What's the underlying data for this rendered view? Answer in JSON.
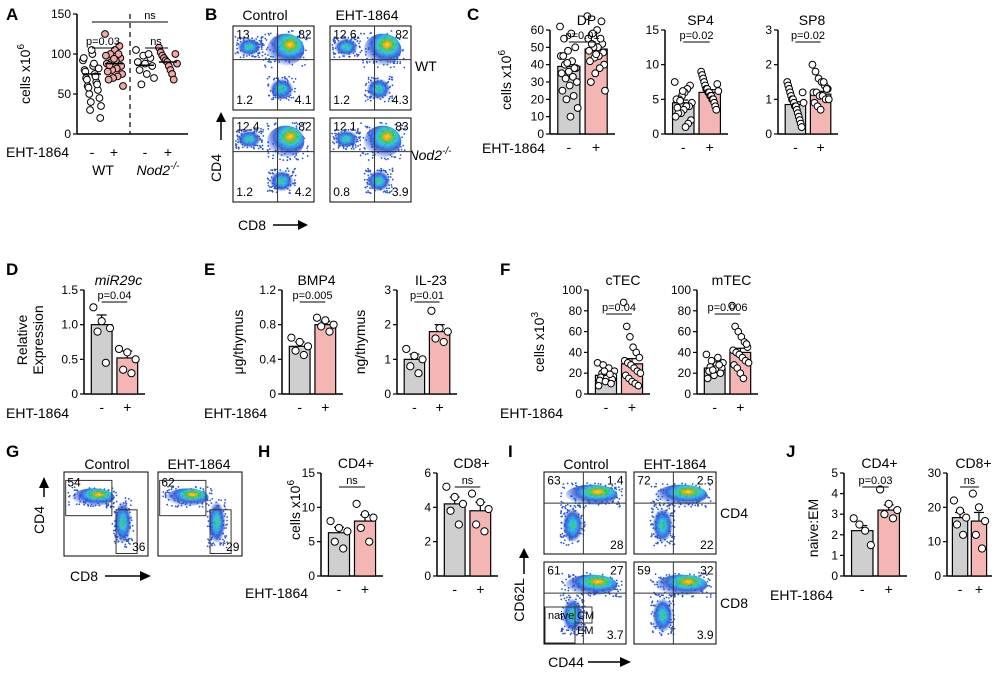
{
  "colors": {
    "control_bar": "#cfcfcf",
    "treated_bar": "#f4b6b3",
    "treated_dot": "#f1a9a5",
    "axis": "#000000"
  },
  "xtick_labels": [
    "-",
    "+"
  ],
  "group_label": "EHT-1864",
  "panels": {
    "A": {
      "letter": "A",
      "ylabel": "cells x10",
      "ylabel_sup": "6",
      "yticks": [
        0,
        50,
        100,
        150
      ],
      "ylim": [
        0,
        150
      ],
      "groups": [
        "WT",
        "Nod2"
      ],
      "group2_sup": "-/-",
      "pvals": [
        "p=0.03",
        "ns",
        "ns"
      ],
      "values": {
        "wt_ctrl": [
          92,
          85,
          80,
          75,
          70,
          65,
          60,
          55,
          50,
          45,
          40,
          35,
          100,
          95,
          88,
          78,
          72,
          68,
          62,
          58,
          82,
          30,
          20,
          105
        ],
        "wt_eht": [
          125,
          110,
          105,
          100,
          98,
          95,
          92,
          90,
          88,
          85,
          82,
          80,
          78,
          75,
          72,
          70,
          68,
          60,
          100,
          94,
          86
        ],
        "nod_ctrl": [
          105,
          98,
          95,
          90,
          88,
          85,
          80,
          75,
          70,
          62,
          100
        ],
        "nod_eht": [
          108,
          102,
          98,
          95,
          92,
          90,
          85,
          80,
          75,
          68,
          100,
          88
        ]
      },
      "means": [
        75,
        88,
        86,
        90
      ]
    },
    "B": {
      "letter": "B",
      "col_labels": [
        "Control",
        "EHT-1864"
      ],
      "row_labels": [
        "WT",
        "Nod2"
      ],
      "row2_sup": "-/-",
      "xlabel": "CD8",
      "ylabel": "CD4",
      "quads": [
        [
          "13",
          "82",
          "1.2",
          "4.1"
        ],
        [
          "12.6",
          "82",
          "1.2",
          "4.3"
        ],
        [
          "12.4",
          "82",
          "1.2",
          "4.2"
        ],
        [
          "12.1",
          "83",
          "0.8",
          "3.9"
        ]
      ]
    },
    "C": {
      "letter": "C",
      "ylabel": "cells x10",
      "ylabel_sup": "6",
      "subpanels": [
        {
          "title": "DP",
          "yticks": [
            0,
            10,
            20,
            30,
            40,
            50,
            60
          ],
          "ylim": [
            0,
            60
          ],
          "means": [
            39,
            49
          ],
          "sems": [
            3,
            3
          ],
          "pval": "p=0.01",
          "ctrl": [
            62,
            58,
            55,
            50,
            48,
            45,
            42,
            40,
            38,
            36,
            35,
            33,
            32,
            30,
            28,
            25,
            22,
            20,
            15,
            10,
            45,
            38,
            41
          ],
          "eht": [
            68,
            65,
            60,
            58,
            55,
            52,
            50,
            50,
            48,
            47,
            45,
            44,
            42,
            40,
            38,
            35,
            30,
            25,
            55,
            46,
            52
          ]
        },
        {
          "title": "SP4",
          "yticks": [
            0,
            5,
            10,
            15
          ],
          "ylim": [
            0,
            15
          ],
          "means": [
            4.5,
            6
          ],
          "sems": [
            0.4,
            0.4
          ],
          "pval": "p=0.02",
          "ctrl": [
            7.5,
            7,
            6.5,
            6,
            5.5,
            5,
            5,
            4.5,
            4,
            4,
            3.5,
            3,
            3,
            2.5,
            2,
            1.5,
            1,
            6.2,
            4.8,
            3.8
          ],
          "eht": [
            9,
            8.5,
            8,
            7.5,
            7,
            6.5,
            6.5,
            6,
            6,
            5.5,
            5.5,
            5,
            5,
            4.5,
            4,
            3.5,
            7.2,
            6.2
          ]
        },
        {
          "title": "SP8",
          "yticks": [
            0,
            1,
            2,
            3
          ],
          "ylim": [
            0,
            3
          ],
          "means": [
            0.85,
            1.15
          ],
          "sems": [
            0.08,
            0.08
          ],
          "pval": "p=0.02",
          "ctrl": [
            1.5,
            1.4,
            1.3,
            1.2,
            1.1,
            1.0,
            1.0,
            0.9,
            0.8,
            0.8,
            0.7,
            0.6,
            0.5,
            0.4,
            0.3,
            0.2,
            1.2,
            0.9
          ],
          "eht": [
            2.0,
            1.8,
            1.6,
            1.5,
            1.4,
            1.3,
            1.2,
            1.2,
            1.1,
            1.1,
            1.0,
            1.0,
            0.9,
            0.8,
            0.7,
            1.5,
            1.3
          ]
        }
      ]
    },
    "D": {
      "letter": "D",
      "title": "miR29c",
      "ylabel_lines": [
        "Relative",
        "Expression"
      ],
      "yticks": [
        0,
        0.5,
        1.0,
        1.5
      ],
      "ytick_labels": [
        "0",
        "0.5",
        "1.0",
        "1.5"
      ],
      "ylim": [
        0,
        1.5
      ],
      "pval": "p=0.04",
      "means": [
        1.0,
        0.52
      ],
      "sems": [
        0.14,
        0.1
      ],
      "ctrl": [
        1.25,
        1.05,
        0.95,
        0.9,
        0.45
      ],
      "eht": [
        0.65,
        0.6,
        0.5,
        0.35,
        0.3
      ]
    },
    "E": {
      "letter": "E",
      "subpanels": [
        {
          "title": "BMP4",
          "ylabel": "μg/thymus",
          "yticks": [
            0,
            0.4,
            0.8,
            1.2
          ],
          "ytick_labels": [
            "0",
            "0.4",
            "0.8",
            "1.2"
          ],
          "ylim": [
            0,
            1.2
          ],
          "pval": "p=0.005",
          "means": [
            0.55,
            0.8
          ],
          "sems": [
            0.05,
            0.04
          ],
          "ctrl": [
            0.65,
            0.6,
            0.55,
            0.5,
            0.45
          ],
          "eht": [
            0.88,
            0.85,
            0.8,
            0.78,
            0.72
          ]
        },
        {
          "title": "IL-23",
          "ylabel": "ng/thymus",
          "yticks": [
            0,
            1,
            2,
            3
          ],
          "ytick_labels": [
            "0",
            "1",
            "2",
            "3"
          ],
          "ylim": [
            0,
            3
          ],
          "pval": "p=0.01",
          "means": [
            1.0,
            1.8
          ],
          "sems": [
            0.15,
            0.2
          ],
          "ctrl": [
            1.3,
            1.1,
            1.0,
            0.8,
            0.6
          ],
          "eht": [
            2.4,
            1.9,
            1.8,
            1.6,
            1.5
          ]
        }
      ]
    },
    "F": {
      "letter": "F",
      "ylabel": "cells x10",
      "ylabel_sup": "3",
      "subpanels": [
        {
          "title": "cTEC",
          "yticks": [
            0,
            20,
            40,
            60,
            80,
            100
          ],
          "ylim": [
            0,
            100
          ],
          "pval": "p=0.04",
          "means": [
            18,
            29
          ],
          "sems": [
            2,
            5
          ],
          "ctrl": [
            30,
            28,
            25,
            22,
            20,
            18,
            17,
            16,
            15,
            14,
            13,
            12,
            10,
            8,
            22,
            19
          ],
          "eht": [
            88,
            65,
            55,
            45,
            40,
            35,
            32,
            30,
            28,
            25,
            22,
            20,
            18,
            15,
            12,
            10,
            8
          ]
        },
        {
          "title": "mTEC",
          "yticks": [
            0,
            20,
            40,
            60,
            80,
            100
          ],
          "ylim": [
            0,
            100
          ],
          "pval": "p=0.006",
          "means": [
            25,
            40
          ],
          "sems": [
            2,
            4
          ],
          "ctrl": [
            38,
            35,
            32,
            30,
            28,
            26,
            25,
            24,
            22,
            20,
            18,
            15,
            28,
            23
          ],
          "eht": [
            85,
            65,
            60,
            55,
            50,
            45,
            42,
            40,
            38,
            35,
            32,
            30,
            28,
            25,
            20,
            15,
            48
          ]
        }
      ]
    },
    "G": {
      "letter": "G",
      "col_labels": [
        "Control",
        "EHT-1864"
      ],
      "xlabel": "CD8",
      "ylabel": "CD4",
      "quads": [
        [
          "54",
          "36"
        ],
        [
          "62",
          "29"
        ]
      ]
    },
    "H": {
      "letter": "H",
      "ylabel": "cells x10",
      "ylabel_sup": "6",
      "subpanels": [
        {
          "title": "CD4+",
          "yticks": [
            0,
            5,
            10,
            15
          ],
          "ylim": [
            0,
            15
          ],
          "pval": "ns",
          "means": [
            6.3,
            8
          ],
          "sems": [
            0.8,
            0.9
          ],
          "ctrl": [
            8,
            7,
            6.5,
            5,
            4
          ],
          "eht": [
            10.5,
            9,
            8.5,
            7,
            5
          ]
        },
        {
          "title": "CD8+",
          "yticks": [
            0,
            2,
            4,
            6
          ],
          "ylim": [
            0,
            6
          ],
          "pval": "ns",
          "means": [
            4.2,
            3.8
          ],
          "sems": [
            0.4,
            0.5
          ],
          "ctrl": [
            5.2,
            4.6,
            4.2,
            3.8,
            3.0
          ],
          "eht": [
            4.8,
            4.3,
            3.9,
            3.0,
            2.6
          ]
        }
      ]
    },
    "I": {
      "letter": "I",
      "col_labels": [
        "Control",
        "EHT-1864"
      ],
      "row_labels": [
        "CD4",
        "CD8"
      ],
      "xlabel": "CD44",
      "ylabel": "CD62L",
      "quads": [
        [
          "63",
          "1.4",
          "28"
        ],
        [
          "72",
          "2.5",
          "22"
        ],
        [
          "61",
          "27",
          "3.7"
        ],
        [
          "59",
          "32",
          "3.9"
        ]
      ],
      "gate_labels": [
        "naive",
        "CM",
        "EM"
      ]
    },
    "J": {
      "letter": "J",
      "ylabel": "naive:EM",
      "subpanels": [
        {
          "title": "CD4+",
          "yticks": [
            0,
            1,
            2,
            3,
            4,
            5
          ],
          "ylim": [
            0,
            5
          ],
          "pval": "p=0.03",
          "means": [
            2.2,
            3.2
          ],
          "sems": [
            0.25,
            0.25
          ],
          "ctrl": [
            2.8,
            2.5,
            2.2,
            1.5
          ],
          "eht": [
            4.2,
            3.5,
            3.2,
            3.0,
            2.8
          ]
        },
        {
          "title": "CD8+",
          "yticks": [
            0,
            10,
            20,
            30
          ],
          "ylim": [
            0,
            30
          ],
          "pval": "ns",
          "means": [
            17,
            16
          ],
          "sems": [
            1.5,
            2.5
          ],
          "ctrl": [
            22,
            19,
            17,
            15,
            12
          ],
          "eht": [
            24,
            20,
            16,
            12,
            8
          ]
        }
      ]
    }
  }
}
